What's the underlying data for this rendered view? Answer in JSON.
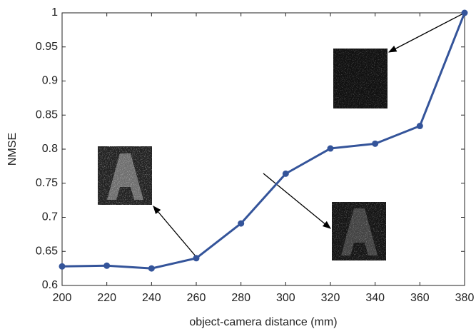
{
  "chart_data": {
    "type": "line",
    "x_label": "object-camera distance (mm)",
    "y_label": "NMSE",
    "x": [
      200,
      220,
      240,
      260,
      280,
      300,
      320,
      340,
      360,
      380
    ],
    "series": [
      {
        "color": "#34549a",
        "values": [
          0.628,
          0.629,
          0.625,
          0.64,
          0.691,
          0.764,
          0.801,
          0.808,
          0.834,
          1.0
        ]
      }
    ],
    "xlim": [
      200,
      380
    ],
    "xticks": [
      200,
      220,
      240,
      260,
      280,
      300,
      320,
      340,
      360,
      380
    ],
    "ylim": [
      0.6,
      1
    ],
    "yticks": [
      0.6,
      0.65,
      0.7,
      0.75,
      0.8,
      0.85,
      0.9,
      0.95,
      1
    ],
    "grid": false
  }
}
